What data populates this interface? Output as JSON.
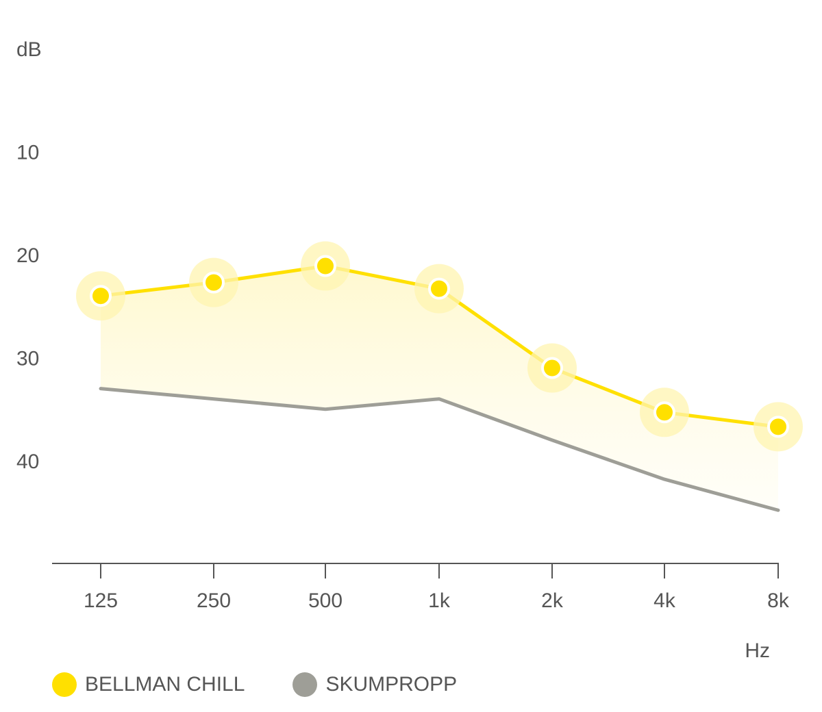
{
  "chart_data": {
    "type": "line",
    "ylabel": "dB",
    "xlabel": "Hz",
    "categories": [
      "125",
      "250",
      "500",
      "1k",
      "2k",
      "4k",
      "8k"
    ],
    "y_ticks": [
      "dB",
      "10",
      "20",
      "30",
      "40"
    ],
    "ylim": [
      0,
      50
    ],
    "y_inverted": true,
    "grid": true,
    "legend_position": "bottom-left",
    "series": [
      {
        "name": "BELLMAN CHILL",
        "color": "#FFE000",
        "markers": true,
        "fill_to_next": true,
        "values": [
          24,
          22.7,
          21.1,
          23.3,
          31,
          35.3,
          36.7
        ]
      },
      {
        "name": "SKUMPROPP",
        "color": "#9E9E97",
        "markers": false,
        "values": [
          33,
          34,
          35,
          34,
          38,
          41.8,
          44.8
        ]
      }
    ]
  }
}
